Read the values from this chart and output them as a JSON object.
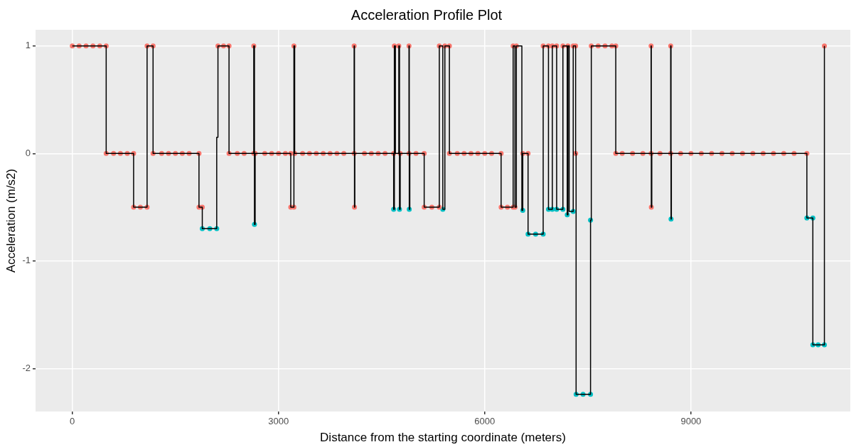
{
  "chart_data": {
    "type": "step",
    "title": "Acceleration Profile Plot",
    "xlabel": "Distance from the starting coordinate (meters)",
    "ylabel": "Acceleration (m/s2)",
    "xlim": [
      -535,
      11318
    ],
    "ylim": [
      -2.4,
      1.15
    ],
    "xticks": [
      0,
      3000,
      6000,
      9000
    ],
    "yticks": [
      -2,
      -1,
      0,
      1
    ],
    "grid": true,
    "marker": "circle",
    "series": [
      {
        "type": "scatter",
        "color": "#f8766d",
        "x": [
          0,
          100,
          200,
          300,
          400,
          493,
          493,
          600,
          700,
          800,
          892,
          892,
          990,
          1088,
          1088,
          1175,
          1175,
          1300,
          1400,
          1500,
          1600,
          1700,
          1843,
          1843,
          1891,
          2119,
          2200,
          2280,
          2280,
          2400,
          2500,
          2640,
          2640,
          2660,
          2800,
          2900,
          3000,
          3100,
          3178,
          3178,
          3224,
          3224,
          3235,
          3350,
          3450,
          3550,
          3650,
          3750,
          3850,
          3950,
          4100,
          4100,
          4105,
          4250,
          4350,
          4450,
          4550,
          4675,
          4685,
          4750,
          4770,
          4898,
          4898,
          5000,
          5119,
          5119,
          5230,
          5339,
          5339,
          5420,
          5486,
          5486,
          5600,
          5700,
          5800,
          5900,
          6000,
          6100,
          6238,
          6238,
          6330,
          6413,
          6413,
          6440,
          6460,
          6553,
          6630,
          6850,
          6927,
          6983,
          7046,
          7137,
          7210,
          7287,
          7322,
          7322,
          7550,
          7650,
          7750,
          7850,
          7906,
          7906,
          8000,
          8150,
          8300,
          8420,
          8420,
          8423,
          8550,
          8705,
          8705,
          8850,
          9000,
          9150,
          9300,
          9450,
          9600,
          9750,
          9900,
          10050,
          10200,
          10350,
          10500,
          10686,
          10941
        ],
        "values": [
          1,
          1,
          1,
          1,
          1,
          1,
          0,
          0,
          0,
          0,
          0,
          -0.5,
          -0.5,
          -0.5,
          1,
          1,
          0,
          0,
          0,
          0,
          0,
          0,
          0,
          -0.5,
          -0.5,
          1,
          1,
          1,
          0,
          0,
          0,
          0,
          1,
          0,
          0,
          0,
          0,
          0,
          0,
          -0.5,
          -0.5,
          1,
          0,
          0,
          0,
          0,
          0,
          0,
          0,
          0,
          0,
          1,
          -0.5,
          0,
          0,
          0,
          0,
          0,
          1,
          1,
          0,
          0,
          1,
          0,
          0,
          -0.5,
          -0.5,
          -0.5,
          1,
          1,
          1,
          0,
          0,
          0,
          0,
          0,
          0,
          0,
          0,
          -0.5,
          -0.5,
          -0.5,
          1,
          -0.5,
          1,
          0,
          0,
          1,
          1,
          1,
          1,
          1,
          1,
          1,
          1,
          0,
          1,
          1,
          1,
          1,
          1,
          0,
          0,
          0,
          0,
          0,
          1,
          -0.5,
          0,
          0,
          1,
          0,
          0,
          0,
          0,
          0,
          0,
          0,
          0,
          0,
          0,
          0,
          0,
          0,
          1
        ]
      },
      {
        "type": "scatter",
        "color": "#00bfc4",
        "x": [
          1891,
          2000,
          2101,
          2650,
          4675,
          4760,
          4902,
          5390,
          6553,
          6630,
          6740,
          6850,
          6927,
          6983,
          7046,
          7137,
          7200,
          7287,
          7329,
          7430,
          7539,
          7539,
          8710,
          10686,
          10773,
          10773,
          10850,
          10941
        ],
        "values": [
          -0.7,
          -0.7,
          -0.7,
          -0.66,
          -0.52,
          -0.52,
          -0.52,
          -0.52,
          -0.53,
          -0.75,
          -0.75,
          -0.75,
          -0.52,
          -0.52,
          -0.52,
          -0.52,
          -0.57,
          -0.54,
          -2.24,
          -2.24,
          -2.24,
          -0.62,
          -0.61,
          -0.6,
          -0.6,
          -1.78,
          -1.78,
          -1.78
        ]
      },
      {
        "type": "step",
        "color": "#000000",
        "marker": "none",
        "x": [
          0,
          493,
          892,
          1088,
          1175,
          1843,
          1891,
          2101,
          2119,
          2280,
          2640,
          2650,
          2660,
          3178,
          3224,
          3235,
          4100,
          4105,
          4110,
          4675,
          4685,
          4700,
          4750,
          4760,
          4770,
          4898,
          4902,
          4910,
          5119,
          5339,
          5390,
          5420,
          5486,
          6238,
          6413,
          6440,
          6460,
          6540,
          6553,
          6630,
          6850,
          6927,
          6983,
          7046,
          7137,
          7200,
          7210,
          7228,
          7287,
          7322,
          7329,
          7539,
          7550,
          7906,
          8420,
          8423,
          8430,
          8705,
          8710,
          8715,
          10686,
          10773,
          10941
        ],
        "values": [
          1,
          0,
          -0.5,
          1,
          0,
          -0.5,
          -0.7,
          0.15,
          1,
          0,
          1,
          -0.66,
          0,
          -0.5,
          1,
          0,
          1,
          -0.5,
          0,
          -0.52,
          1,
          0,
          1,
          -0.52,
          0,
          1,
          -0.52,
          0,
          -0.5,
          1,
          -0.52,
          1,
          0,
          -0.5,
          1,
          -0.5,
          1,
          -0.53,
          0,
          -0.75,
          1,
          -0.52,
          1,
          -0.52,
          1,
          -0.57,
          1,
          -0.54,
          1,
          0,
          -2.24,
          -0.62,
          1,
          0,
          1,
          -0.5,
          0,
          1,
          -0.61,
          0,
          -0.6,
          -1.78,
          1
        ]
      }
    ]
  }
}
